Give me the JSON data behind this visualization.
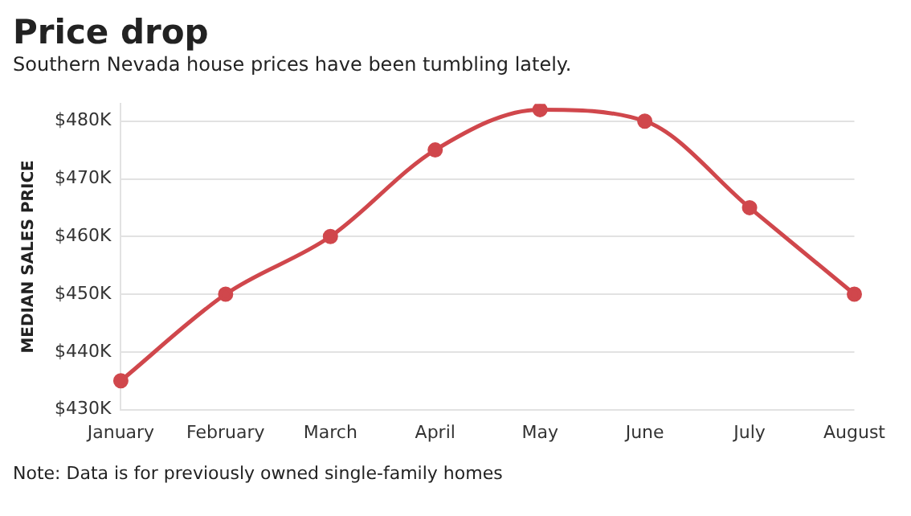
{
  "chart_data": {
    "type": "line",
    "title": "Price drop",
    "subtitle": "Southern Nevada house prices have been tumbling lately.",
    "ylabel": "MEDIAN SALES PRICE",
    "categories": [
      "January",
      "February",
      "March",
      "April",
      "May",
      "June",
      "July",
      "August"
    ],
    "series": [
      {
        "color": "#d0474c",
        "values": [
          435,
          450,
          460,
          475,
          482,
          480,
          465,
          450
        ]
      }
    ],
    "ylim": [
      430,
      483
    ],
    "yticks": [
      {
        "value": 430,
        "label": "$430K"
      },
      {
        "value": 440,
        "label": "$440K"
      },
      {
        "value": 450,
        "label": "$450K"
      },
      {
        "value": 460,
        "label": "$460K"
      },
      {
        "value": 470,
        "label": "$470K"
      },
      {
        "value": 480,
        "label": "$480K"
      }
    ],
    "grid": "y",
    "marker": "circle",
    "line_style": "solid",
    "legend": false,
    "annotations": [
      "Note: Data is for previously owned single-family homes"
    ]
  }
}
